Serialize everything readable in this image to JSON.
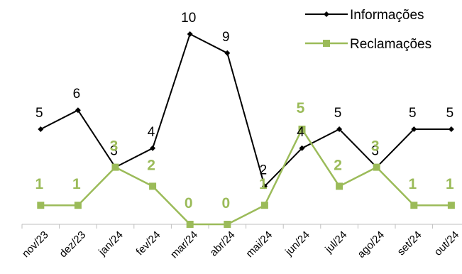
{
  "chart_data": {
    "type": "line",
    "categories": [
      "nov/23",
      "dez/23",
      "jan/24",
      "fev/24",
      "mar/24",
      "abr/24",
      "mai/24",
      "jun/24",
      "jul/24",
      "ago/24",
      "set/24",
      "out/24"
    ],
    "series": [
      {
        "name": "Informações",
        "values": [
          5,
          6,
          3,
          4,
          10,
          9,
          2,
          4,
          5,
          3,
          5,
          5
        ],
        "color": "#000000",
        "marker": "diamond"
      },
      {
        "name": "Reclamações",
        "values": [
          1,
          1,
          3,
          2,
          0,
          0,
          1,
          5,
          2,
          3,
          1,
          1
        ],
        "color": "#9bbb59",
        "marker": "square"
      }
    ],
    "ylim": [
      0,
      10.5
    ],
    "grid": false,
    "legend": "top-right",
    "data_labels": true
  }
}
